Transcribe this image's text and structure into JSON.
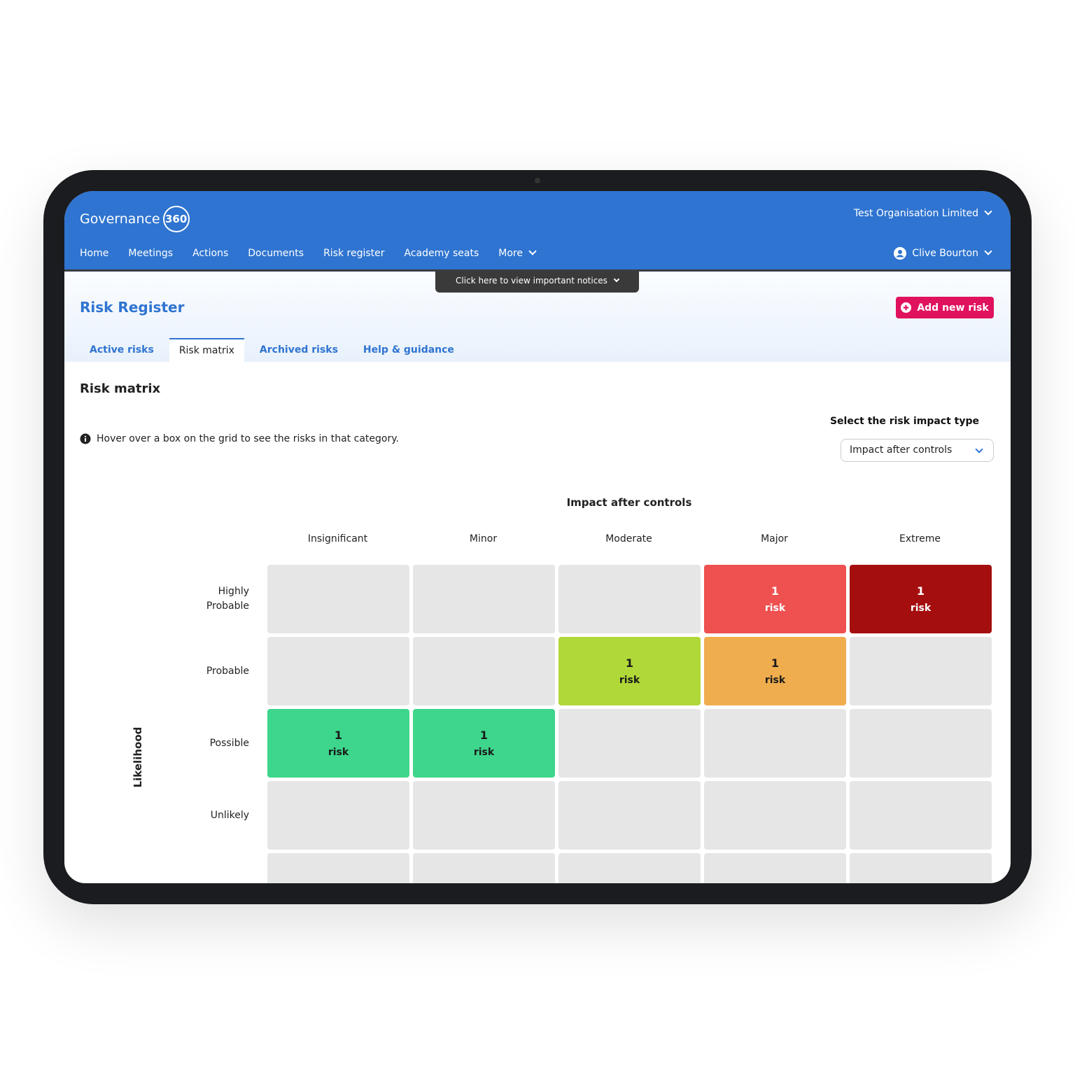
{
  "header": {
    "logo": "Governance",
    "logo_badge": "360",
    "organisation": "Test Organisation Limited",
    "user": "Clive Bourton"
  },
  "nav": [
    "Home",
    "Meetings",
    "Actions",
    "Documents",
    "Risk register",
    "Academy seats",
    "More"
  ],
  "notice": "Click here to view important notices",
  "page": {
    "title": "Risk Register",
    "add_button": "Add new risk"
  },
  "tabs": [
    "Active risks",
    "Risk matrix",
    "Archived risks",
    "Help & guidance"
  ],
  "active_tab": 1,
  "matrix": {
    "heading": "Risk matrix",
    "hint": "Hover over a box on the grid to see the risks in that category.",
    "select_label": "Select the risk impact type",
    "select_value": "Impact after controls",
    "x_title": "Impact after controls",
    "y_title": "Likelihood",
    "columns": [
      "Insignificant",
      "Minor",
      "Moderate",
      "Major",
      "Extreme"
    ],
    "rows": [
      "Highly Probable",
      "Probable",
      "Possible",
      "Unlikely",
      null
    ],
    "cells": [
      [
        null,
        null,
        null,
        {
          "count": 1,
          "label": "risk",
          "color": "#ef5050",
          "text_color": "#ffffff"
        },
        {
          "count": 1,
          "label": "risk",
          "color": "#a50e0e",
          "text_color": "#ffffff"
        }
      ],
      [
        null,
        null,
        {
          "count": 1,
          "label": "risk",
          "color": "#b0d838",
          "text_color": "#1a1a1a"
        },
        {
          "count": 1,
          "label": "risk",
          "color": "#f0ad4e",
          "text_color": "#1a1a1a"
        },
        null
      ],
      [
        {
          "count": 1,
          "label": "risk",
          "color": "#3dd68c",
          "text_color": "#1a1a1a"
        },
        {
          "count": 1,
          "label": "risk",
          "color": "#3dd68c",
          "text_color": "#1a1a1a"
        },
        null,
        null,
        null
      ],
      [
        null,
        null,
        null,
        null,
        null
      ],
      [
        null,
        null,
        null,
        null,
        null
      ]
    ]
  }
}
